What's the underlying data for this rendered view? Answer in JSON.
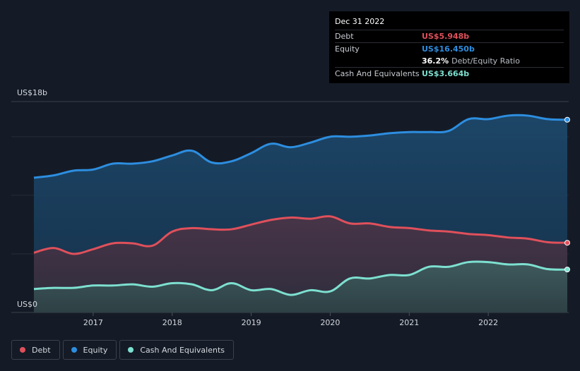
{
  "tooltip": {
    "date": "Dec 31 2022",
    "debt_label": "Debt",
    "debt_value": "US$5.948b",
    "equity_label": "Equity",
    "equity_value": "US$16.450b",
    "ratio_value": "36.2%",
    "ratio_label": "Debt/Equity Ratio",
    "cash_label": "Cash And Equivalents",
    "cash_value": "US$3.664b"
  },
  "legend": {
    "debt": "Debt",
    "equity": "Equity",
    "cash": "Cash And Equivalents"
  },
  "colors": {
    "debt": "#e0505b",
    "equity": "#2d8ee0",
    "cash": "#7de0d0",
    "background": "#151b26"
  },
  "chart_data": {
    "type": "area",
    "ylim": [
      0,
      18
    ],
    "yticks": [
      {
        "value": 18,
        "label": "US$18b"
      },
      {
        "value": 0,
        "label": "US$0"
      }
    ],
    "xticks": [
      "2017",
      "2018",
      "2019",
      "2020",
      "2021",
      "2022"
    ],
    "x": [
      2016.25,
      2016.5,
      2016.75,
      2017.0,
      2017.25,
      2017.5,
      2017.75,
      2018.0,
      2018.25,
      2018.5,
      2018.75,
      2019.0,
      2019.25,
      2019.5,
      2019.75,
      2020.0,
      2020.25,
      2020.5,
      2020.75,
      2021.0,
      2021.25,
      2021.5,
      2021.75,
      2022.0,
      2022.25,
      2022.5,
      2022.75,
      2023.0
    ],
    "series": [
      {
        "name": "Equity",
        "values": [
          11.5,
          11.7,
          12.1,
          12.2,
          12.7,
          12.7,
          12.9,
          13.4,
          13.8,
          12.8,
          12.9,
          13.6,
          14.4,
          14.1,
          14.5,
          15.0,
          15.0,
          15.1,
          15.3,
          15.4,
          15.4,
          15.5,
          16.5,
          16.5,
          16.8,
          16.8,
          16.5,
          16.45
        ]
      },
      {
        "name": "Debt",
        "values": [
          5.1,
          5.5,
          5.0,
          5.4,
          5.9,
          5.9,
          5.7,
          6.9,
          7.2,
          7.1,
          7.1,
          7.5,
          7.9,
          8.1,
          8.0,
          8.2,
          7.6,
          7.6,
          7.3,
          7.2,
          7.0,
          6.9,
          6.7,
          6.6,
          6.4,
          6.3,
          6.0,
          5.948
        ]
      },
      {
        "name": "Cash And Equivalents",
        "values": [
          2.0,
          2.1,
          2.1,
          2.3,
          2.3,
          2.4,
          2.2,
          2.5,
          2.4,
          1.9,
          2.5,
          1.9,
          2.0,
          1.5,
          1.9,
          1.8,
          2.9,
          2.9,
          3.2,
          3.2,
          3.9,
          3.9,
          4.3,
          4.3,
          4.1,
          4.1,
          3.7,
          3.664
        ]
      }
    ]
  }
}
